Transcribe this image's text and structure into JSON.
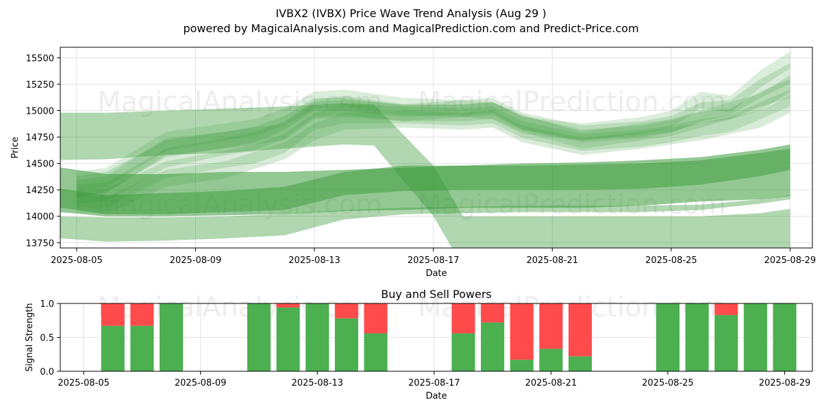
{
  "header": {
    "title": "IVBX2 (IVBX) Price Wave Trend Analysis (Aug 29 )",
    "subtitle": "powered by MagicalAnalysis.com and MagicalPrediction.com and Predict-Price.com"
  },
  "watermarks": [
    "MagicalAnalysis.com",
    "MagicalPrediction.com"
  ],
  "colors": {
    "band": "#3a9a3a",
    "buy": "#4caf50",
    "sell": "#ff4b4b",
    "grid": "#e0e0e0"
  },
  "chart_data": [
    {
      "type": "area",
      "xlabel": "Date",
      "ylabel": "Price",
      "xlim": [
        "2025-08-04",
        "2025-08-30"
      ],
      "ylim": [
        13700,
        15600
      ],
      "x_ticks": [
        "2025-08-05",
        "2025-08-09",
        "2025-08-13",
        "2025-08-17",
        "2025-08-21",
        "2025-08-25",
        "2025-08-29"
      ],
      "y_ticks": [
        13750,
        14000,
        14250,
        14500,
        14750,
        15000,
        15250,
        15500
      ],
      "grid": true,
      "series": [
        {
          "x": [
            "2025-08-04",
            "2025-08-06",
            "2025-08-08",
            "2025-08-10",
            "2025-08-12",
            "2025-08-14",
            "2025-08-15",
            "2025-08-17",
            "2025-08-18",
            "2025-08-20",
            "2025-08-22",
            "2025-08-24",
            "2025-08-26",
            "2025-08-28",
            "2025-08-29"
          ],
          "upper": [
            14980,
            14980,
            15000,
            15020,
            15040,
            15070,
            15060,
            14480,
            14000,
            14000,
            14000,
            14000,
            14000,
            14030,
            14070
          ],
          "lower": [
            14530,
            14540,
            14580,
            14600,
            14640,
            14680,
            14670,
            14000,
            13520,
            13510,
            13500,
            13500,
            13500,
            13520,
            13560
          ]
        },
        {
          "x": [
            "2025-08-04",
            "2025-08-06",
            "2025-08-08",
            "2025-08-10",
            "2025-08-12",
            "2025-08-14",
            "2025-08-16",
            "2025-08-18",
            "2025-08-20",
            "2025-08-22",
            "2025-08-24",
            "2025-08-26",
            "2025-08-28",
            "2025-08-29"
          ],
          "upper": [
            14480,
            14400,
            14400,
            14420,
            14420,
            14440,
            14460,
            14480,
            14500,
            14510,
            14530,
            14560,
            14630,
            14680
          ],
          "lower": [
            14050,
            14000,
            14000,
            14010,
            14020,
            14050,
            14060,
            14080,
            14080,
            14080,
            14100,
            14140,
            14160,
            14190
          ]
        },
        {
          "x": [
            "2025-08-04",
            "2025-08-06",
            "2025-08-08",
            "2025-08-10",
            "2025-08-12",
            "2025-08-14",
            "2025-08-16",
            "2025-08-18",
            "2025-08-20",
            "2025-08-22",
            "2025-08-24",
            "2025-08-26",
            "2025-08-28",
            "2025-08-29"
          ],
          "upper": [
            14280,
            14200,
            14220,
            14240,
            14280,
            14420,
            14480,
            14480,
            14480,
            14490,
            14500,
            14530,
            14600,
            14640
          ],
          "lower": [
            14100,
            14020,
            14020,
            14040,
            14060,
            14200,
            14240,
            14250,
            14250,
            14250,
            14260,
            14300,
            14380,
            14440
          ]
        },
        {
          "x": [
            "2025-08-04",
            "2025-08-06",
            "2025-08-08",
            "2025-08-10",
            "2025-08-12",
            "2025-08-14",
            "2025-08-16",
            "2025-08-18",
            "2025-08-20",
            "2025-08-22",
            "2025-08-24",
            "2025-08-26",
            "2025-08-28",
            "2025-08-29"
          ],
          "upper": [
            14000,
            13990,
            13990,
            14000,
            14020,
            14060,
            14080,
            14090,
            14100,
            14100,
            14100,
            14110,
            14160,
            14200
          ],
          "lower": [
            13800,
            13760,
            13770,
            13790,
            13820,
            13970,
            14020,
            14030,
            14040,
            14040,
            14040,
            14060,
            14120,
            14160
          ]
        },
        {
          "x": [
            "2025-08-05",
            "2025-08-06",
            "2025-08-08",
            "2025-08-10",
            "2025-08-11",
            "2025-08-12",
            "2025-08-13",
            "2025-08-14",
            "2025-08-16",
            "2025-08-18",
            "2025-08-19",
            "2025-08-20",
            "2025-08-22",
            "2025-08-24",
            "2025-08-25",
            "2025-08-26",
            "2025-08-27",
            "2025-08-28",
            "2025-08-29"
          ],
          "upper": [
            14380,
            14420,
            14720,
            14800,
            14850,
            14950,
            15120,
            15120,
            15050,
            15060,
            15080,
            14950,
            14820,
            14860,
            14910,
            14990,
            15020,
            15180,
            15300
          ],
          "lower": [
            14180,
            14230,
            14560,
            14650,
            14700,
            14820,
            15000,
            15000,
            14940,
            14960,
            14980,
            14820,
            14720,
            14760,
            14800,
            14880,
            14920,
            15040,
            15120
          ]
        },
        {
          "x": [
            "2025-08-05",
            "2025-08-06",
            "2025-08-08",
            "2025-08-10",
            "2025-08-11",
            "2025-08-12",
            "2025-08-13",
            "2025-08-14",
            "2025-08-16",
            "2025-08-18",
            "2025-08-19",
            "2025-08-20",
            "2025-08-22",
            "2025-08-24",
            "2025-08-25",
            "2025-08-26",
            "2025-08-27",
            "2025-08-28",
            "2025-08-29"
          ],
          "upper": [
            14300,
            14320,
            14640,
            14740,
            14800,
            14900,
            15100,
            15140,
            15060,
            15100,
            15120,
            14980,
            14860,
            14900,
            14950,
            15080,
            15100,
            15300,
            15450
          ],
          "lower": [
            14120,
            14140,
            14460,
            14580,
            14620,
            14740,
            14940,
            14960,
            14900,
            14940,
            14960,
            14820,
            14700,
            14740,
            14790,
            14900,
            14960,
            15120,
            15260
          ]
        },
        {
          "x": [
            "2025-08-05",
            "2025-08-06",
            "2025-08-08",
            "2025-08-10",
            "2025-08-11",
            "2025-08-12",
            "2025-08-13",
            "2025-08-14",
            "2025-08-16",
            "2025-08-18",
            "2025-08-19",
            "2025-08-20",
            "2025-08-22",
            "2025-08-24",
            "2025-08-25",
            "2025-08-26",
            "2025-08-27",
            "2025-08-28",
            "2025-08-29"
          ],
          "upper": [
            14250,
            14260,
            14520,
            14620,
            14680,
            14780,
            14980,
            15060,
            15040,
            15020,
            15040,
            14900,
            14780,
            14820,
            14860,
            14920,
            14960,
            15080,
            15200
          ],
          "lower": [
            14080,
            14080,
            14360,
            14460,
            14500,
            14600,
            14820,
            14880,
            14880,
            14860,
            14880,
            14740,
            14620,
            14660,
            14700,
            14760,
            14800,
            14920,
            15040
          ]
        },
        {
          "x": [
            "2025-08-05",
            "2025-08-06",
            "2025-08-08",
            "2025-08-10",
            "2025-08-11",
            "2025-08-12",
            "2025-08-13",
            "2025-08-14",
            "2025-08-16",
            "2025-08-18",
            "2025-08-19",
            "2025-08-20",
            "2025-08-22",
            "2025-08-24",
            "2025-08-25",
            "2025-08-26",
            "2025-08-27",
            "2025-08-28",
            "2025-08-29"
          ],
          "upper": [
            14420,
            14460,
            14800,
            14880,
            14920,
            15020,
            15180,
            15200,
            15120,
            15100,
            15080,
            14940,
            14880,
            14940,
            15000,
            15180,
            15140,
            15380,
            15560
          ],
          "lower": [
            14240,
            14280,
            14620,
            14720,
            14760,
            14860,
            15020,
            15040,
            14960,
            14940,
            14920,
            14780,
            14720,
            14780,
            14840,
            15020,
            14980,
            15220,
            15400
          ]
        },
        {
          "x": [
            "2025-08-05",
            "2025-08-06",
            "2025-08-08",
            "2025-08-10",
            "2025-08-12",
            "2025-08-13",
            "2025-08-14",
            "2025-08-16",
            "2025-08-18",
            "2025-08-19",
            "2025-08-20",
            "2025-08-22",
            "2025-08-24",
            "2025-08-25",
            "2025-08-26",
            "2025-08-28",
            "2025-08-29"
          ],
          "upper": [
            14200,
            14180,
            14440,
            14520,
            14700,
            14880,
            14980,
            15000,
            14980,
            15000,
            14860,
            14740,
            14800,
            14840,
            14880,
            15000,
            15140
          ],
          "lower": [
            14040,
            14020,
            14280,
            14360,
            14540,
            14720,
            14820,
            14840,
            14820,
            14840,
            14700,
            14580,
            14640,
            14680,
            14720,
            14840,
            14980
          ]
        },
        {
          "x": [
            "2025-08-05",
            "2025-08-06",
            "2025-08-08",
            "2025-08-10",
            "2025-08-12",
            "2025-08-13",
            "2025-08-14",
            "2025-08-16",
            "2025-08-18",
            "2025-08-19",
            "2025-08-20",
            "2025-08-22",
            "2025-08-24",
            "2025-08-25",
            "2025-08-26",
            "2025-08-28",
            "2025-08-29"
          ],
          "upper": [
            14340,
            14380,
            14740,
            14800,
            14880,
            15080,
            15100,
            15060,
            15060,
            15080,
            14960,
            14800,
            14880,
            14920,
            15000,
            15160,
            15340
          ],
          "lower": [
            14180,
            14220,
            14580,
            14640,
            14720,
            14920,
            14940,
            14900,
            14900,
            14920,
            14800,
            14640,
            14720,
            14760,
            14840,
            15000,
            15180
          ]
        }
      ]
    },
    {
      "type": "bar",
      "title": "Buy and Sell Powers",
      "xlabel": "Date",
      "ylabel": "Signal Strength",
      "ylim": [
        0,
        1.0
      ],
      "y_ticks": [
        "0.0",
        "0.5",
        "1.0"
      ],
      "x_ticks": [
        "2025-08-05",
        "2025-08-09",
        "2025-08-13",
        "2025-08-17",
        "2025-08-21",
        "2025-08-25",
        "2025-08-29"
      ],
      "grid": true,
      "categories": [
        "2025-08-06",
        "2025-08-07",
        "2025-08-08",
        "2025-08-11",
        "2025-08-12",
        "2025-08-13",
        "2025-08-14",
        "2025-08-15",
        "2025-08-18",
        "2025-08-19",
        "2025-08-20",
        "2025-08-21",
        "2025-08-22",
        "2025-08-25",
        "2025-08-26",
        "2025-08-27",
        "2025-08-28",
        "2025-08-29"
      ],
      "series": [
        {
          "name": "buy",
          "values": [
            0.67,
            0.67,
            1.0,
            1.0,
            0.94,
            1.0,
            0.78,
            0.56,
            0.56,
            0.72,
            0.17,
            0.33,
            0.22,
            1.0,
            1.0,
            0.83,
            1.0,
            1.0
          ]
        },
        {
          "name": "sell",
          "values": [
            0.33,
            0.33,
            0.0,
            0.0,
            0.06,
            0.0,
            0.22,
            0.44,
            0.44,
            0.28,
            0.83,
            0.67,
            0.78,
            0.0,
            0.0,
            0.17,
            0.0,
            0.0
          ]
        }
      ]
    }
  ]
}
